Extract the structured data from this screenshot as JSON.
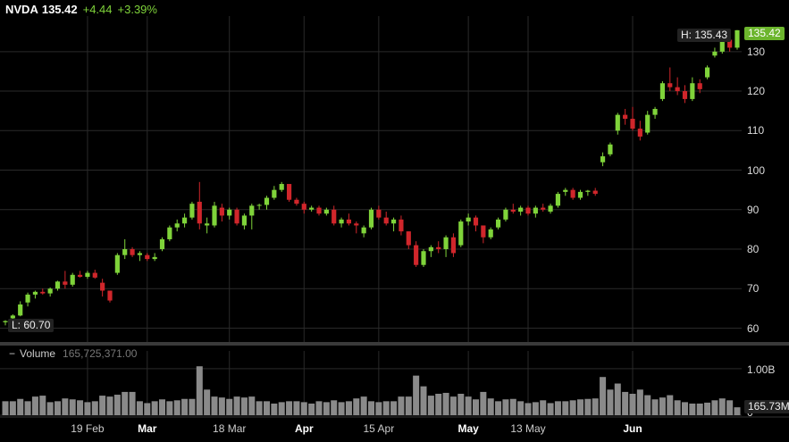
{
  "header": {
    "symbol": "NVDA",
    "price": "135.42",
    "change": "+4.44",
    "change_pct": "+3.39%"
  },
  "tags": {
    "high": "H: 135.43",
    "low": "L: 60.70",
    "last": "135.42",
    "volume_last": "165.73M"
  },
  "volume_panel": {
    "toggle": "−",
    "label": "Volume",
    "value": "165,725,371.00",
    "y_ticks": [
      "1.00B",
      "0"
    ]
  },
  "colors": {
    "up": "#7fd33a",
    "down": "#d0262b",
    "grid": "#2a2a2a",
    "volume": "#8a8a8a"
  },
  "chart_data": {
    "type": "candlestick",
    "y_ticks": [
      60,
      70,
      80,
      90,
      100,
      110,
      120,
      130
    ],
    "ylim": [
      56.5,
      139
    ],
    "x_labels": [
      {
        "label": "19 Feb",
        "major": false,
        "index": 11
      },
      {
        "label": "Mar",
        "major": true,
        "index": 19
      },
      {
        "label": "18 Mar",
        "major": false,
        "index": 30
      },
      {
        "label": "Apr",
        "major": true,
        "index": 40
      },
      {
        "label": "15 Apr",
        "major": false,
        "index": 50
      },
      {
        "label": "May",
        "major": true,
        "index": 62
      },
      {
        "label": "13 May",
        "major": false,
        "index": 70
      },
      {
        "label": "Jun",
        "major": true,
        "index": 84
      }
    ],
    "volume_ylim": [
      0,
      1.15
    ],
    "candles": [
      [
        61.5,
        62.0,
        60.7,
        61.8,
        0.3
      ],
      [
        62.5,
        63.5,
        62.0,
        63.2,
        0.3
      ],
      [
        63.2,
        66.8,
        63.0,
        66.0,
        0.35
      ],
      [
        66.5,
        69.0,
        65.5,
        68.5,
        0.3
      ],
      [
        68.5,
        69.5,
        67.5,
        69.2,
        0.4
      ],
      [
        69.2,
        70.0,
        68.5,
        68.8,
        0.42
      ],
      [
        68.8,
        70.3,
        68.0,
        70.0,
        0.28
      ],
      [
        70.0,
        72.0,
        69.5,
        71.8,
        0.3
      ],
      [
        71.8,
        74.5,
        70.0,
        71.0,
        0.36
      ],
      [
        71.0,
        74.0,
        70.5,
        73.5,
        0.34
      ],
      [
        73.5,
        74.5,
        72.8,
        73.0,
        0.32
      ],
      [
        73.0,
        74.5,
        72.5,
        74.0,
        0.28
      ],
      [
        74.0,
        74.8,
        72.5,
        72.8,
        0.3
      ],
      [
        71.5,
        72.5,
        68.0,
        69.5,
        0.42
      ],
      [
        69.5,
        69.0,
        66.5,
        67.0,
        0.4
      ],
      [
        74.0,
        79.0,
        73.5,
        78.5,
        0.44
      ],
      [
        78.5,
        82.5,
        77.5,
        80.0,
        0.5
      ],
      [
        80.0,
        80.5,
        78.0,
        78.5,
        0.5
      ],
      [
        78.5,
        79.5,
        77.0,
        79.0,
        0.3
      ],
      [
        78.5,
        79.0,
        77.0,
        77.5,
        0.26
      ],
      [
        77.5,
        79.0,
        77.0,
        78.0,
        0.3
      ],
      [
        80.0,
        83.0,
        79.5,
        82.5,
        0.34
      ],
      [
        82.5,
        86.0,
        82.0,
        85.5,
        0.3
      ],
      [
        85.5,
        87.5,
        84.5,
        86.5,
        0.32
      ],
      [
        86.5,
        89.0,
        85.5,
        88.0,
        0.35
      ],
      [
        88.0,
        92.0,
        87.5,
        91.5,
        0.35
      ],
      [
        92.0,
        97.0,
        85.0,
        86.5,
        1.05
      ],
      [
        86.0,
        88.0,
        84.0,
        86.5,
        0.55
      ],
      [
        86.0,
        92.0,
        85.5,
        91.0,
        0.4
      ],
      [
        90.5,
        91.5,
        87.0,
        88.5,
        0.38
      ],
      [
        88.5,
        90.5,
        87.5,
        90.0,
        0.35
      ],
      [
        90.0,
        90.5,
        86.0,
        86.5,
        0.4
      ],
      [
        86.0,
        89.0,
        85.0,
        88.5,
        0.38
      ],
      [
        88.5,
        91.5,
        85.0,
        91.0,
        0.4
      ],
      [
        91.0,
        91.5,
        90.0,
        91.2,
        0.3
      ],
      [
        91.2,
        93.5,
        90.0,
        93.0,
        0.3
      ],
      [
        93.0,
        96.0,
        92.5,
        95.0,
        0.25
      ],
      [
        95.0,
        97.0,
        94.5,
        96.5,
        0.28
      ],
      [
        96.5,
        96.5,
        92.0,
        92.5,
        0.3
      ],
      [
        92.5,
        93.0,
        91.0,
        91.5,
        0.3
      ],
      [
        91.5,
        92.0,
        89.0,
        90.0,
        0.28
      ],
      [
        90.0,
        91.0,
        89.5,
        90.5,
        0.25
      ],
      [
        90.5,
        91.0,
        88.5,
        89.0,
        0.3
      ],
      [
        89.0,
        90.5,
        88.5,
        90.0,
        0.28
      ],
      [
        90.0,
        91.0,
        86.0,
        86.5,
        0.32
      ],
      [
        86.5,
        88.0,
        85.5,
        87.5,
        0.28
      ],
      [
        87.5,
        89.0,
        86.0,
        86.5,
        0.3
      ],
      [
        86.5,
        87.0,
        84.0,
        86.0,
        0.36
      ],
      [
        84.0,
        86.0,
        83.0,
        85.5,
        0.4
      ],
      [
        85.5,
        90.5,
        85.0,
        90.0,
        0.3
      ],
      [
        90.0,
        91.0,
        87.5,
        88.0,
        0.28
      ],
      [
        88.0,
        89.5,
        86.0,
        86.5,
        0.3
      ],
      [
        86.5,
        88.0,
        84.5,
        87.5,
        0.3
      ],
      [
        87.5,
        88.5,
        83.5,
        84.5,
        0.4
      ],
      [
        84.5,
        84.5,
        80.0,
        81.0,
        0.4
      ],
      [
        81.0,
        82.0,
        75.5,
        76.0,
        0.85
      ],
      [
        76.0,
        80.0,
        75.5,
        79.5,
        0.62
      ],
      [
        79.5,
        81.0,
        78.0,
        80.5,
        0.42
      ],
      [
        80.5,
        82.0,
        79.0,
        80.0,
        0.46
      ],
      [
        80.0,
        83.5,
        78.0,
        83.0,
        0.48
      ],
      [
        83.0,
        84.0,
        78.0,
        79.0,
        0.4
      ],
      [
        81.0,
        87.5,
        80.5,
        87.0,
        0.46
      ],
      [
        87.0,
        89.0,
        86.0,
        88.0,
        0.4
      ],
      [
        88.0,
        88.5,
        84.5,
        86.0,
        0.34
      ],
      [
        86.0,
        86.0,
        81.5,
        83.0,
        0.5
      ],
      [
        83.0,
        85.5,
        82.5,
        85.0,
        0.36
      ],
      [
        85.5,
        88.0,
        85.0,
        87.5,
        0.3
      ],
      [
        87.5,
        90.5,
        87.0,
        90.0,
        0.34
      ],
      [
        90.0,
        91.5,
        89.0,
        89.5,
        0.35
      ],
      [
        89.5,
        91.0,
        88.5,
        90.5,
        0.3
      ],
      [
        90.5,
        91.0,
        88.5,
        89.0,
        0.26
      ],
      [
        89.0,
        91.0,
        88.0,
        90.5,
        0.28
      ],
      [
        90.5,
        91.5,
        89.5,
        90.0,
        0.32
      ],
      [
        89.5,
        91.5,
        89.0,
        91.0,
        0.26
      ],
      [
        91.0,
        94.5,
        90.5,
        94.0,
        0.3
      ],
      [
        94.5,
        95.5,
        93.5,
        95.0,
        0.3
      ],
      [
        95.0,
        95.5,
        92.5,
        93.0,
        0.32
      ],
      [
        93.0,
        95.0,
        92.5,
        94.5,
        0.34
      ],
      [
        94.5,
        95.0,
        93.5,
        94.8,
        0.35
      ],
      [
        94.8,
        95.5,
        93.5,
        94.0,
        0.36
      ],
      [
        102.0,
        104.5,
        101.0,
        103.5,
        0.82
      ],
      [
        104.0,
        107.0,
        103.5,
        106.5,
        0.55
      ],
      [
        110.0,
        114.5,
        109.0,
        114.0,
        0.68
      ],
      [
        114.0,
        115.5,
        111.5,
        113.0,
        0.5
      ],
      [
        113.0,
        116.0,
        110.0,
        110.5,
        0.46
      ],
      [
        110.5,
        112.5,
        107.5,
        108.5,
        0.55
      ],
      [
        109.5,
        115.0,
        109.0,
        114.0,
        0.43
      ],
      [
        114.0,
        116.0,
        113.0,
        115.5,
        0.34
      ],
      [
        118.0,
        122.5,
        117.5,
        122.0,
        0.38
      ],
      [
        122.0,
        126.0,
        120.0,
        121.0,
        0.43
      ],
      [
        121.0,
        123.5,
        119.0,
        120.0,
        0.32
      ],
      [
        120.0,
        121.5,
        117.0,
        118.0,
        0.28
      ],
      [
        118.0,
        123.5,
        117.5,
        122.0,
        0.25
      ],
      [
        122.0,
        123.0,
        119.5,
        120.5,
        0.25
      ],
      [
        123.5,
        126.5,
        123.0,
        126.0,
        0.27
      ],
      [
        129.0,
        131.0,
        128.5,
        130.0,
        0.32
      ],
      [
        130.0,
        134.0,
        129.5,
        133.0,
        0.36
      ],
      [
        133.0,
        134.5,
        130.0,
        131.0,
        0.32
      ],
      [
        131.0,
        135.43,
        130.5,
        135.42,
        0.17
      ]
    ]
  }
}
